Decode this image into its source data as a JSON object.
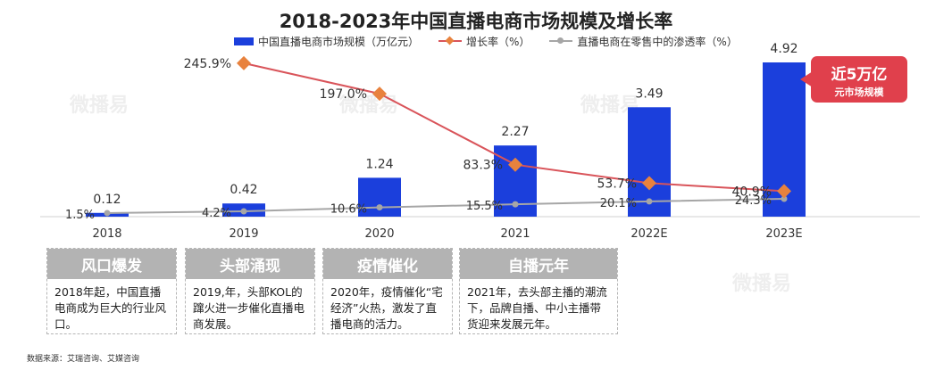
{
  "title": "2018-2023年中国直播电商市场规模及增长率",
  "legend": {
    "bar_label": "中国直播电商市场规模（万亿元）",
    "growth_label": "增长率（%）",
    "penetration_label": "直播电商在零售中的渗透率（%）"
  },
  "colors": {
    "bar": "#1b3fdc",
    "growth_line": "#d9545a",
    "growth_marker": "#e8823e",
    "penetration": "#a6a6a6",
    "badge": "#e0404c",
    "stage_header": "#b3b3b3"
  },
  "chart_data": {
    "type": "bar",
    "title": "2018-2023年中国直播电商市场规模及增长率",
    "categories": [
      "2018",
      "2019",
      "2020",
      "2021",
      "2022E",
      "2023E"
    ],
    "series": [
      {
        "name": "中国直播电商市场规模（万亿元）",
        "type": "bar",
        "values": [
          0.12,
          0.42,
          1.24,
          2.27,
          3.49,
          4.92
        ],
        "labels": [
          "0.12",
          "0.42",
          "1.24",
          "2.27",
          "3.49",
          "4.92"
        ]
      },
      {
        "name": "增长率（%）",
        "type": "line",
        "values": [
          null,
          245.9,
          197.0,
          83.3,
          53.7,
          40.9
        ],
        "labels": [
          "",
          "245.9%",
          "197.0%",
          "83.3%",
          "53.7%",
          "40.9%"
        ]
      },
      {
        "name": "直播电商在零售中的渗透率（%）",
        "type": "line",
        "values": [
          1.5,
          4.2,
          10.6,
          15.5,
          20.1,
          24.3
        ],
        "labels": [
          "1.5%",
          "4.2%",
          "10.6%",
          "15.5%",
          "20.1%",
          "24.3%"
        ]
      }
    ],
    "grid": false,
    "legend_position": "top"
  },
  "badge": {
    "line1": "近5万亿",
    "line2": "元市场规模"
  },
  "stages": [
    {
      "title": "风口爆发",
      "text": "2018年起，中国直播电商成为巨大的行业风口。"
    },
    {
      "title": "头部涌现",
      "text": "2019,年，头部KOL的蹿火进一步催化直播电商发展。"
    },
    {
      "title": "疫情催化",
      "text": "2020年，疫情催化“宅经济”火热，激发了直播电商的活力。"
    },
    {
      "title": "自播元年",
      "text": "2021年，去头部主播的潮流下，品牌自播、中小主播带货迎来发展元年。"
    }
  ],
  "footnote": "数据来源：艾瑞咨询、艾媒咨询",
  "watermark": "微播易"
}
